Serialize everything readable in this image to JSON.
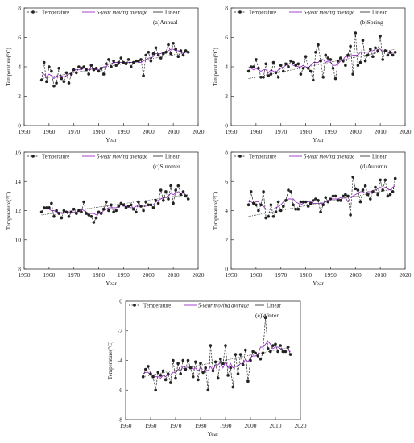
{
  "legend": {
    "temperature": "Temperature",
    "moving_average": "5-year moving average",
    "linear": "Linear"
  },
  "colors": {
    "temperature": "#222222",
    "moving_average": "#9b30c8",
    "linear": "#222222"
  },
  "chart_data": [
    {
      "type": "line",
      "title": "(a)Annual",
      "xlabel": "Year",
      "ylabel": "Temperature(°C)",
      "xlim": [
        1950,
        2020
      ],
      "ylim": [
        0,
        8
      ],
      "xticks": [
        1950,
        1960,
        1970,
        1980,
        1990,
        2000,
        2010,
        2020
      ],
      "yticks": [
        0,
        2,
        4,
        6,
        8
      ],
      "x_start": 1957,
      "temperature": [
        3.1,
        4.3,
        3.0,
        4.0,
        3.7,
        2.7,
        2.9,
        3.9,
        3.2,
        3.0,
        3.6,
        2.9,
        3.5,
        3.8,
        3.6,
        4.0,
        3.9,
        4.0,
        3.8,
        3.5,
        4.1,
        3.8,
        3.9,
        3.7,
        3.9,
        3.5,
        4.2,
        4.5,
        4.0,
        4.4,
        4.1,
        4.3,
        4.6,
        4.3,
        4.2,
        4.5,
        4.0,
        4.3,
        4.4,
        4.4,
        4.5,
        3.4,
        4.8,
        5.0,
        4.4,
        4.9,
        5.3,
        4.8,
        4.6,
        4.9,
        5.0,
        5.5,
        4.9,
        5.6,
        5.2,
        4.7,
        5.1,
        4.8,
        5.1,
        5.0
      ],
      "moving_average": [
        3.6,
        3.5,
        3.3,
        3.5,
        3.4,
        3.2,
        3.4,
        3.3,
        3.4,
        3.3,
        3.4,
        3.5,
        3.6,
        3.8,
        3.8,
        3.8,
        3.8,
        3.9,
        3.9,
        3.8,
        3.9,
        3.8,
        3.8,
        3.8,
        3.9,
        4.0,
        4.0,
        4.2,
        4.2,
        4.3,
        4.3,
        4.3,
        4.3,
        4.3,
        4.3,
        4.3,
        4.3,
        4.3,
        4.4,
        4.3,
        4.3,
        4.4,
        4.5,
        4.6,
        4.6,
        4.7,
        4.9,
        4.9,
        4.9,
        5.0,
        5.0,
        5.1,
        5.2,
        5.2,
        5.1,
        5.1,
        5.0,
        4.9,
        5.0,
        5.0
      ],
      "linear_fit": {
        "x": [
          1957,
          2016
        ],
        "y": [
          3.2,
          5.0
        ]
      }
    },
    {
      "type": "line",
      "title": "(b)Spring",
      "xlabel": "Year",
      "ylabel": "Temperature(°C)",
      "xlim": [
        1950,
        2020
      ],
      "ylim": [
        0,
        8
      ],
      "xticks": [
        1950,
        1960,
        1970,
        1980,
        1990,
        2000,
        2010,
        2020
      ],
      "yticks": [
        0,
        2,
        4,
        6,
        8
      ],
      "x_start": 1957,
      "temperature": [
        3.7,
        4.0,
        4.0,
        4.5,
        3.9,
        3.3,
        3.3,
        4.2,
        3.4,
        3.5,
        4.3,
        3.6,
        3.3,
        4.1,
        3.7,
        4.2,
        4.0,
        4.4,
        4.3,
        4.1,
        4.2,
        3.5,
        3.9,
        4.7,
        3.9,
        3.7,
        3.1,
        5.0,
        5.5,
        4.4,
        3.3,
        4.8,
        4.6,
        4.5,
        3.9,
        3.2,
        4.4,
        4.6,
        4.4,
        4.1,
        4.8,
        5.4,
        3.5,
        6.3,
        4.1,
        4.3,
        5.8,
        4.4,
        4.8,
        5.2,
        4.7,
        5.3,
        5.1,
        6.1,
        4.5,
        5.1,
        4.8,
        5.0,
        4.8,
        5.0
      ],
      "moving_average": [
        4.0,
        3.9,
        3.8,
        3.9,
        3.8,
        3.7,
        3.8,
        3.8,
        3.6,
        3.8,
        3.7,
        3.6,
        3.8,
        3.9,
        4.0,
        4.1,
        4.2,
        4.2,
        4.1,
        4.1,
        4.0,
        4.0,
        4.1,
        4.0,
        3.9,
        4.1,
        4.3,
        4.3,
        4.3,
        4.5,
        4.5,
        4.3,
        4.4,
        4.3,
        4.1,
        4.1,
        4.2,
        4.4,
        4.5,
        4.7,
        4.7,
        4.7,
        4.8,
        4.8,
        4.8,
        5.0,
        5.0,
        5.0,
        5.0,
        5.1,
        5.1,
        5.2,
        5.3,
        5.2,
        5.0,
        5.1,
        5.0,
        4.9,
        5.0,
        5.0
      ],
      "linear_fit": {
        "x": [
          1957,
          2016
        ],
        "y": [
          3.2,
          5.2
        ]
      }
    },
    {
      "type": "line",
      "title": "(c)Summer",
      "xlabel": "Year",
      "ylabel": "Temperature(°C)",
      "xlim": [
        1950,
        2020
      ],
      "ylim": [
        8,
        16
      ],
      "xticks": [
        1950,
        1960,
        1970,
        1980,
        1990,
        2000,
        2010,
        2020
      ],
      "yticks": [
        8,
        10,
        12,
        14,
        16
      ],
      "x_start": 1957,
      "temperature": [
        11.9,
        12.2,
        12.2,
        12.2,
        12.5,
        11.6,
        12.0,
        11.8,
        11.5,
        12.0,
        11.9,
        11.6,
        11.9,
        12.1,
        11.8,
        12.0,
        11.9,
        12.6,
        11.8,
        11.7,
        11.6,
        11.2,
        11.5,
        11.9,
        11.8,
        12.1,
        12.6,
        12.0,
        12.4,
        11.9,
        12.0,
        12.3,
        12.5,
        12.4,
        12.2,
        12.3,
        12.4,
        12.1,
        11.9,
        12.6,
        12.3,
        12.0,
        12.6,
        12.4,
        12.4,
        12.2,
        12.7,
        12.5,
        13.4,
        12.7,
        13.3,
        12.8,
        13.7,
        12.5,
        13.4,
        13.7,
        13.1,
        13.3,
        13.0,
        12.8
      ],
      "moving_average": [
        12.1,
        12.1,
        12.1,
        12.1,
        12.0,
        12.0,
        11.9,
        11.9,
        11.8,
        11.8,
        11.9,
        11.9,
        11.9,
        11.9,
        11.9,
        12.0,
        12.1,
        12.0,
        11.9,
        11.8,
        11.8,
        11.8,
        11.7,
        11.8,
        11.8,
        12.0,
        12.1,
        12.2,
        12.2,
        12.2,
        12.2,
        12.3,
        12.4,
        12.3,
        12.3,
        12.3,
        12.2,
        12.2,
        12.3,
        12.3,
        12.3,
        12.3,
        12.3,
        12.4,
        12.4,
        12.4,
        12.6,
        12.7,
        12.8,
        12.9,
        12.9,
        13.0,
        13.2,
        13.1,
        13.2,
        13.3,
        13.2,
        13.2,
        13.1,
        13.0
      ],
      "linear_fit": {
        "x": [
          1957,
          2016
        ],
        "y": [
          11.7,
          13.1
        ]
      }
    },
    {
      "type": "line",
      "title": "(d)Autumn",
      "xlabel": "Year",
      "ylabel": "Temperature(°C)",
      "xlim": [
        1950,
        2020
      ],
      "ylim": [
        0,
        8
      ],
      "xticks": [
        1950,
        1960,
        1970,
        1980,
        1990,
        2000,
        2010,
        2020
      ],
      "yticks": [
        0,
        2,
        4,
        6,
        8
      ],
      "x_start": 1957,
      "temperature": [
        4.4,
        5.3,
        4.5,
        4.4,
        4.0,
        4.4,
        5.3,
        3.5,
        3.6,
        4.4,
        3.6,
        3.9,
        4.6,
        4.0,
        4.3,
        4.7,
        5.4,
        5.3,
        4.4,
        4.1,
        4.1,
        4.6,
        4.6,
        4.6,
        4.3,
        4.5,
        4.7,
        4.8,
        4.7,
        3.9,
        4.4,
        4.9,
        4.6,
        4.8,
        5.0,
        5.0,
        4.7,
        4.7,
        5.0,
        5.1,
        5.0,
        3.7,
        6.3,
        5.5,
        5.4,
        4.6,
        5.4,
        5.7,
        5.1,
        4.8,
        5.3,
        5.6,
        5.1,
        6.1,
        5.4,
        6.1,
        5.0,
        5.1,
        5.3,
        6.2
      ],
      "moving_average": [
        4.6,
        4.6,
        4.5,
        4.6,
        4.6,
        4.4,
        4.3,
        4.1,
        4.1,
        4.1,
        4.1,
        4.2,
        4.3,
        4.4,
        4.6,
        4.7,
        4.8,
        4.8,
        4.8,
        4.6,
        4.5,
        4.4,
        4.5,
        4.6,
        4.6,
        4.6,
        4.5,
        4.5,
        4.5,
        4.5,
        4.5,
        4.6,
        4.7,
        4.8,
        4.8,
        4.8,
        4.8,
        4.9,
        4.9,
        4.9,
        4.6,
        4.9,
        5.0,
        5.1,
        5.2,
        5.3,
        5.3,
        5.2,
        5.3,
        5.3,
        5.3,
        5.4,
        5.5,
        5.6,
        5.5,
        5.6,
        5.5,
        5.4,
        5.6,
        5.7
      ],
      "linear_fit": {
        "x": [
          1957,
          2016
        ],
        "y": [
          3.6,
          5.5
        ]
      }
    },
    {
      "type": "line",
      "title": "(e)Winter",
      "xlabel": "Year",
      "ylabel": "Temperature(°C)",
      "xlim": [
        1950,
        2020
      ],
      "ylim": [
        -8,
        0
      ],
      "xticks": [
        1950,
        1960,
        1970,
        1980,
        1990,
        2000,
        2010,
        2020
      ],
      "yticks": [
        -8,
        -6,
        -4,
        -2,
        0
      ],
      "x_start": 1957,
      "temperature": [
        -5.1,
        -4.6,
        -4.4,
        -4.9,
        -5.1,
        -6.0,
        -4.8,
        -5.0,
        -4.7,
        -5.3,
        -4.9,
        -5.5,
        -4.0,
        -5.2,
        -4.2,
        -4.9,
        -4.0,
        -4.6,
        -4.0,
        -4.5,
        -5.1,
        -4.1,
        -5.3,
        -4.2,
        -4.8,
        -4.5,
        -6.0,
        -3.0,
        -4.7,
        -4.1,
        -5.2,
        -3.9,
        -4.2,
        -3.0,
        -5.0,
        -4.5,
        -5.8,
        -3.6,
        -4.9,
        -3.6,
        -4.3,
        -3.3,
        -5.4,
        -4.0,
        -3.4,
        -3.5,
        -3.7,
        -3.9,
        -3.5,
        -1.1,
        -3.2,
        -3.4,
        -3.0,
        -2.9,
        -3.4,
        -3.0,
        -3.4,
        -3.4,
        -3.1,
        -3.6
      ],
      "moving_average": [
        -4.9,
        -4.8,
        -4.8,
        -5.0,
        -5.0,
        -5.1,
        -5.1,
        -5.2,
        -5.0,
        -5.1,
        -4.9,
        -5.0,
        -4.8,
        -4.8,
        -4.6,
        -4.7,
        -4.4,
        -4.4,
        -4.4,
        -4.4,
        -4.6,
        -4.5,
        -4.7,
        -4.5,
        -4.9,
        -4.6,
        -4.7,
        -4.4,
        -4.7,
        -4.3,
        -4.3,
        -4.1,
        -4.5,
        -4.1,
        -4.5,
        -4.2,
        -4.5,
        -4.4,
        -4.4,
        -4.2,
        -4.3,
        -3.9,
        -4.1,
        -3.8,
        -3.7,
        -3.7,
        -3.6,
        -3.1,
        -3.1,
        -2.9,
        -2.7,
        -2.9,
        -3.2,
        -3.1,
        -3.1,
        -3.2,
        -3.3,
        -3.3,
        -3.3,
        -3.4
      ],
      "linear_fit": {
        "x": [
          1957,
          2016
        ],
        "y": [
          -5.1,
          -3.1
        ]
      }
    }
  ]
}
